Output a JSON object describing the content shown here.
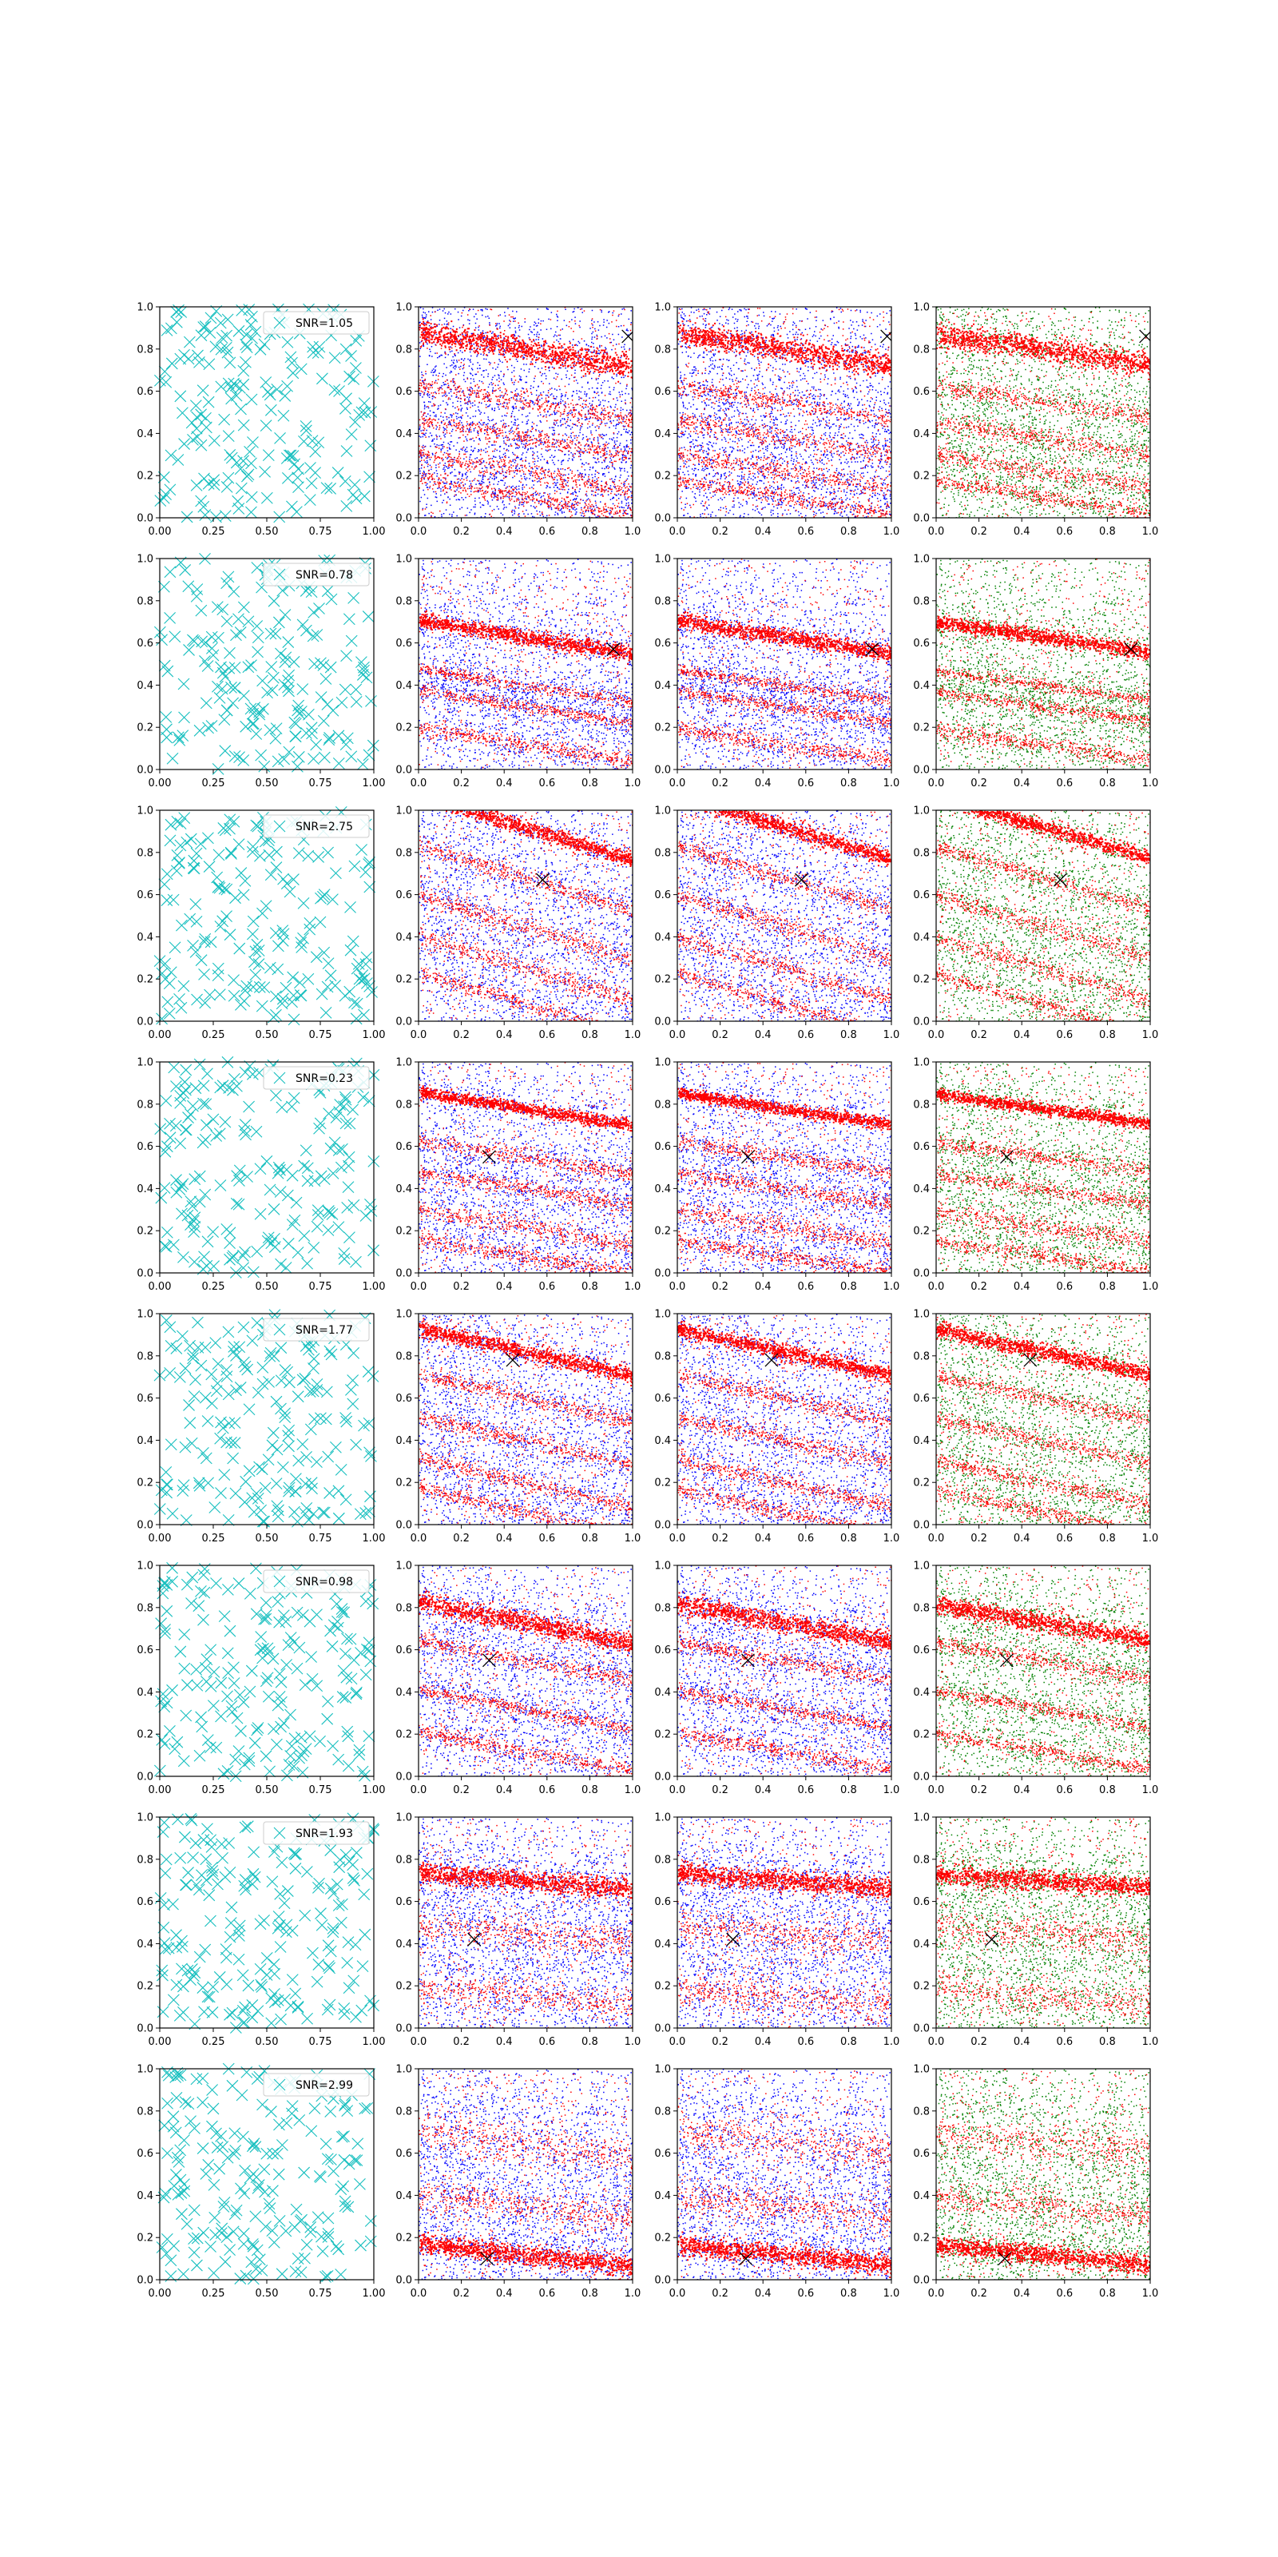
{
  "figure": {
    "rows": 8,
    "cols": 4
  },
  "colors": {
    "cyan": "#17bfbf",
    "red": "#ff0000",
    "blue": "#0000ff",
    "green": "#008000",
    "marker": "#000000"
  },
  "chart_data": {
    "type": "scatter",
    "grid": false,
    "legend_placement": "upper right",
    "first_column": {
      "xlim": [
        0,
        1
      ],
      "ylim": [
        0,
        1
      ],
      "xticks": [
        "0.00",
        "0.25",
        "0.50",
        "0.75",
        "1.00"
      ],
      "yticks": [
        "0.0",
        "0.2",
        "0.4",
        "0.6",
        "0.8",
        "1.0"
      ],
      "marker": "x",
      "color": "cyan",
      "points_per_panel": 200
    },
    "other_columns": {
      "xlim": [
        0,
        1
      ],
      "ylim": [
        0,
        1
      ],
      "xticks": [
        "0.0",
        "0.2",
        "0.4",
        "0.6",
        "0.8",
        "1.0"
      ],
      "yticks": [
        "0.0",
        "0.2",
        "0.4",
        "0.6",
        "0.8",
        "1.0"
      ],
      "column_colors": [
        [
          "red",
          "blue"
        ],
        [
          "red",
          "blue"
        ],
        [
          "red",
          "green"
        ]
      ]
    },
    "rows": [
      {
        "snr_label": "SNR=1.05",
        "marker_point": [
          0.98,
          0.86
        ],
        "band_slope": -0.16,
        "bands": [
          [
            0.8,
            0.06
          ],
          [
            0.55,
            0.05
          ],
          [
            0.38,
            0.05
          ],
          [
            0.22,
            0.05
          ],
          [
            0.1,
            0.04
          ]
        ]
      },
      {
        "snr_label": "SNR=0.78",
        "marker_point": [
          0.91,
          0.57
        ],
        "band_slope": -0.15,
        "bands": [
          [
            0.63,
            0.04
          ],
          [
            0.4,
            0.03
          ],
          [
            0.3,
            0.03
          ],
          [
            0.12,
            0.04
          ]
        ]
      },
      {
        "snr_label": "SNR=2.75",
        "marker_point": [
          0.58,
          0.67
        ],
        "band_slope": -0.3,
        "bands": [
          [
            0.92,
            0.04
          ],
          [
            0.68,
            0.04
          ],
          [
            0.45,
            0.05
          ],
          [
            0.25,
            0.05
          ],
          [
            0.08,
            0.04
          ]
        ]
      },
      {
        "snr_label": "SNR=0.23",
        "marker_point": [
          0.33,
          0.55
        ],
        "band_slope": -0.15,
        "bands": [
          [
            0.78,
            0.03
          ],
          [
            0.55,
            0.04
          ],
          [
            0.4,
            0.04
          ],
          [
            0.22,
            0.05
          ],
          [
            0.08,
            0.04
          ]
        ]
      },
      {
        "snr_label": "SNR=1.77",
        "marker_point": [
          0.44,
          0.78
        ],
        "band_slope": -0.22,
        "bands": [
          [
            0.82,
            0.04
          ],
          [
            0.6,
            0.04
          ],
          [
            0.4,
            0.04
          ],
          [
            0.2,
            0.04
          ],
          [
            0.06,
            0.04
          ]
        ]
      },
      {
        "snr_label": "SNR=0.98",
        "marker_point": [
          0.33,
          0.55
        ],
        "band_slope": -0.18,
        "bands": [
          [
            0.73,
            0.05
          ],
          [
            0.55,
            0.04
          ],
          [
            0.32,
            0.03
          ],
          [
            0.12,
            0.04
          ]
        ]
      },
      {
        "snr_label": "SNR=1.93",
        "marker_point": [
          0.26,
          0.42
        ],
        "band_slope": -0.07,
        "bands": [
          [
            0.7,
            0.05
          ],
          [
            0.45,
            0.08
          ],
          [
            0.15,
            0.08
          ]
        ]
      },
      {
        "snr_label": "SNR=2.99",
        "marker_point": [
          0.32,
          0.1
        ],
        "band_slope": -0.1,
        "bands": [
          [
            0.12,
            0.05
          ],
          [
            0.35,
            0.08
          ],
          [
            0.65,
            0.1
          ]
        ]
      }
    ]
  }
}
